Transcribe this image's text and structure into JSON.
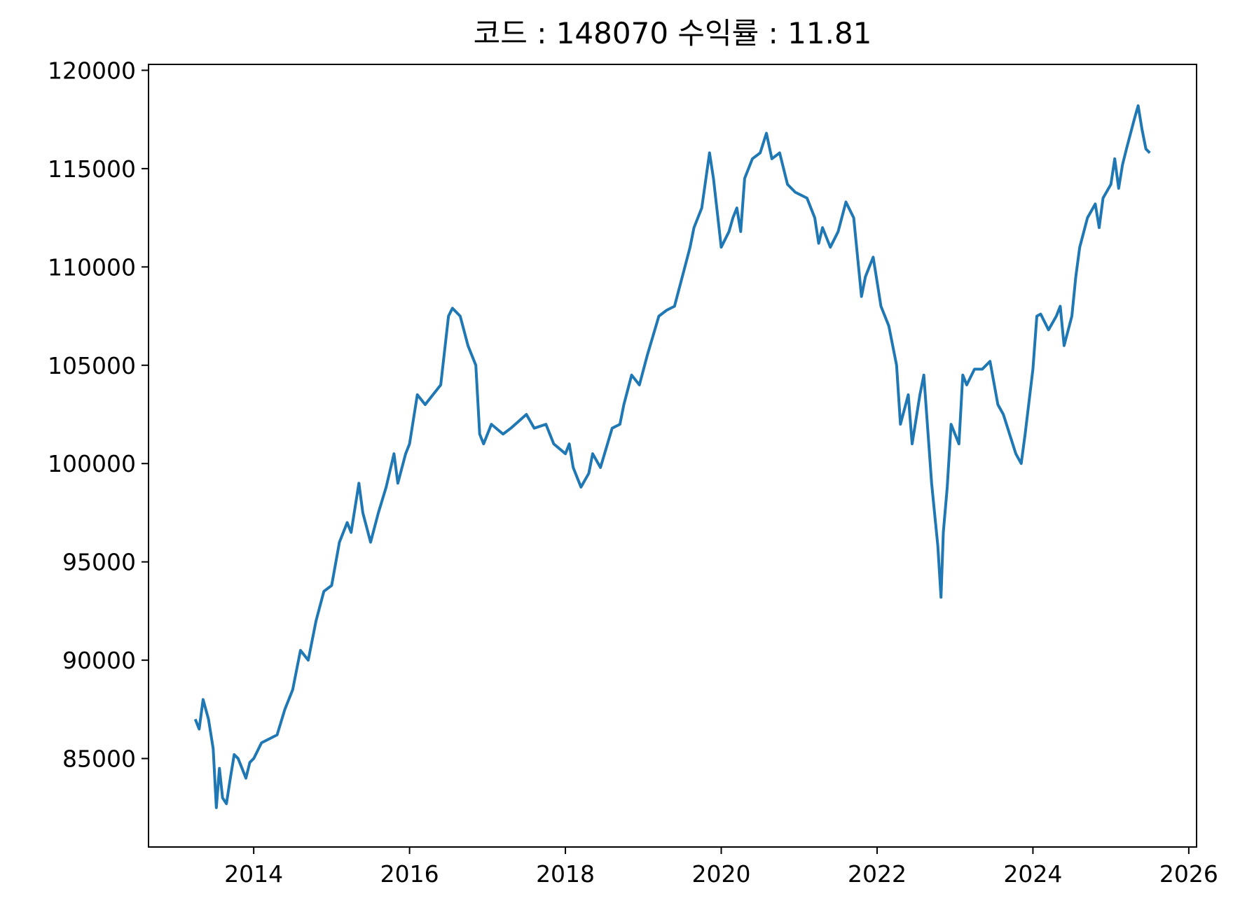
{
  "chart_data": {
    "type": "line",
    "title": "코드 : 148070 수익률 : 11.81",
    "xlabel": "",
    "ylabel": "",
    "xlim": [
      2012.65,
      2026.1
    ],
    "ylim": [
      80500,
      120300
    ],
    "xticks": [
      2014,
      2016,
      2018,
      2020,
      2022,
      2024,
      2026
    ],
    "xtick_labels": [
      "2014",
      "2016",
      "2018",
      "2020",
      "2022",
      "2024",
      "2026"
    ],
    "yticks": [
      85000,
      90000,
      95000,
      100000,
      105000,
      110000,
      115000,
      120000
    ],
    "ytick_labels": [
      "85000",
      "90000",
      "95000",
      "100000",
      "105000",
      "110000",
      "115000",
      "120000"
    ],
    "grid": false,
    "series": [
      {
        "color": "#1f77b4",
        "x": [
          2013.25,
          2013.3,
          2013.35,
          2013.42,
          2013.48,
          2013.52,
          2013.56,
          2013.6,
          2013.65,
          2013.7,
          2013.75,
          2013.8,
          2013.85,
          2013.9,
          2013.95,
          2014.0,
          2014.1,
          2014.2,
          2014.3,
          2014.4,
          2014.5,
          2014.55,
          2014.6,
          2014.7,
          2014.8,
          2014.9,
          2015.0,
          2015.1,
          2015.2,
          2015.25,
          2015.35,
          2015.4,
          2015.5,
          2015.6,
          2015.7,
          2015.8,
          2015.85,
          2015.95,
          2016.0,
          2016.1,
          2016.2,
          2016.3,
          2016.4,
          2016.5,
          2016.55,
          2016.65,
          2016.75,
          2016.85,
          2016.9,
          2016.95,
          2017.05,
          2017.2,
          2017.3,
          2017.5,
          2017.6,
          2017.75,
          2017.85,
          2018.0,
          2018.05,
          2018.1,
          2018.2,
          2018.3,
          2018.35,
          2018.45,
          2018.6,
          2018.7,
          2018.75,
          2018.85,
          2018.95,
          2019.05,
          2019.2,
          2019.3,
          2019.4,
          2019.5,
          2019.6,
          2019.65,
          2019.75,
          2019.85,
          2019.9,
          2020.0,
          2020.1,
          2020.15,
          2020.2,
          2020.25,
          2020.3,
          2020.4,
          2020.5,
          2020.58,
          2020.65,
          2020.75,
          2020.85,
          2020.95,
          2021.1,
          2021.2,
          2021.25,
          2021.3,
          2021.4,
          2021.5,
          2021.6,
          2021.7,
          2021.8,
          2021.85,
          2021.95,
          2022.05,
          2022.15,
          2022.25,
          2022.3,
          2022.4,
          2022.45,
          2022.55,
          2022.6,
          2022.7,
          2022.78,
          2022.82,
          2022.85,
          2022.9,
          2022.95,
          2023.05,
          2023.1,
          2023.15,
          2023.25,
          2023.35,
          2023.45,
          2023.55,
          2023.62,
          2023.7,
          2023.78,
          2023.85,
          2023.9,
          2024.0,
          2024.05,
          2024.1,
          2024.2,
          2024.3,
          2024.35,
          2024.4,
          2024.5,
          2024.55,
          2024.6,
          2024.7,
          2024.8,
          2024.85,
          2024.9,
          2025.0,
          2025.05,
          2025.1,
          2025.15,
          2025.2,
          2025.3,
          2025.35,
          2025.4,
          2025.45,
          2025.5
        ],
        "y": [
          87000,
          86500,
          88000,
          87000,
          85500,
          82500,
          84500,
          83000,
          82700,
          84000,
          85200,
          85000,
          84500,
          84000,
          84800,
          85000,
          85800,
          86000,
          86200,
          87500,
          88500,
          89500,
          90500,
          90000,
          92000,
          93500,
          93800,
          96000,
          97000,
          96500,
          99000,
          97500,
          96000,
          97500,
          98800,
          100500,
          99000,
          100500,
          101000,
          103500,
          103000,
          103500,
          104000,
          107500,
          107900,
          107500,
          106000,
          105000,
          101500,
          101000,
          102000,
          101500,
          101800,
          102500,
          101800,
          102000,
          101000,
          100500,
          101000,
          99800,
          98800,
          99500,
          100500,
          99800,
          101800,
          102000,
          103000,
          104500,
          104000,
          105500,
          107500,
          107800,
          108000,
          109500,
          111000,
          112000,
          113000,
          115800,
          114500,
          111000,
          111800,
          112500,
          113000,
          111800,
          114500,
          115500,
          115800,
          116800,
          115500,
          115800,
          114200,
          113800,
          113500,
          112500,
          111200,
          112000,
          111000,
          111800,
          113300,
          112500,
          108500,
          109500,
          110500,
          108000,
          107000,
          105000,
          102000,
          103500,
          101000,
          103500,
          104500,
          99000,
          95800,
          93200,
          96500,
          98800,
          102000,
          101000,
          104500,
          104000,
          104800,
          104800,
          105200,
          103000,
          102500,
          101500,
          100500,
          100000,
          101500,
          104800,
          107500,
          107600,
          106800,
          107500,
          108000,
          106000,
          107500,
          109500,
          111000,
          112500,
          113200,
          112000,
          113500,
          114200,
          115500,
          114000,
          115200,
          116000,
          117500,
          118200,
          117000,
          116000,
          115800
        ]
      }
    ]
  }
}
